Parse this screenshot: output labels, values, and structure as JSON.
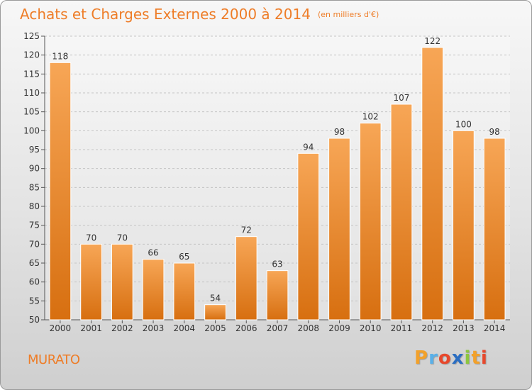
{
  "header": {
    "title": "Achats et Charges Externes 2000 à 2014",
    "unit": "(en milliers d'€)"
  },
  "footer": {
    "commune": "MURATO",
    "logo_letters": [
      "P",
      "r",
      "o",
      "x",
      "i",
      "t",
      "i"
    ],
    "logo_colors": [
      "#f2a12b",
      "#5ab0e8",
      "#e7482c",
      "#2b6ec2",
      "#8dc63f",
      "#f2a12b",
      "#e7482c"
    ]
  },
  "chart_data": {
    "type": "bar",
    "title": "Achats et Charges Externes 2000 à 2014",
    "subtitle": "(en milliers d'€)",
    "xlabel": "",
    "ylabel": "",
    "categories": [
      "2000",
      "2001",
      "2002",
      "2003",
      "2004",
      "2005",
      "2006",
      "2007",
      "2008",
      "2009",
      "2010",
      "2011",
      "2012",
      "2013",
      "2014"
    ],
    "values": [
      118,
      70,
      70,
      66,
      65,
      54,
      72,
      63,
      94,
      98,
      102,
      107,
      122,
      100,
      98
    ],
    "ylim": [
      50,
      125
    ],
    "yticks": [
      50,
      55,
      60,
      65,
      70,
      75,
      80,
      85,
      90,
      95,
      100,
      105,
      110,
      115,
      120,
      125
    ],
    "grid": true,
    "legend": "none",
    "bar_color_top": "#f7a656",
    "bar_color_bottom": "#d76f10"
  }
}
